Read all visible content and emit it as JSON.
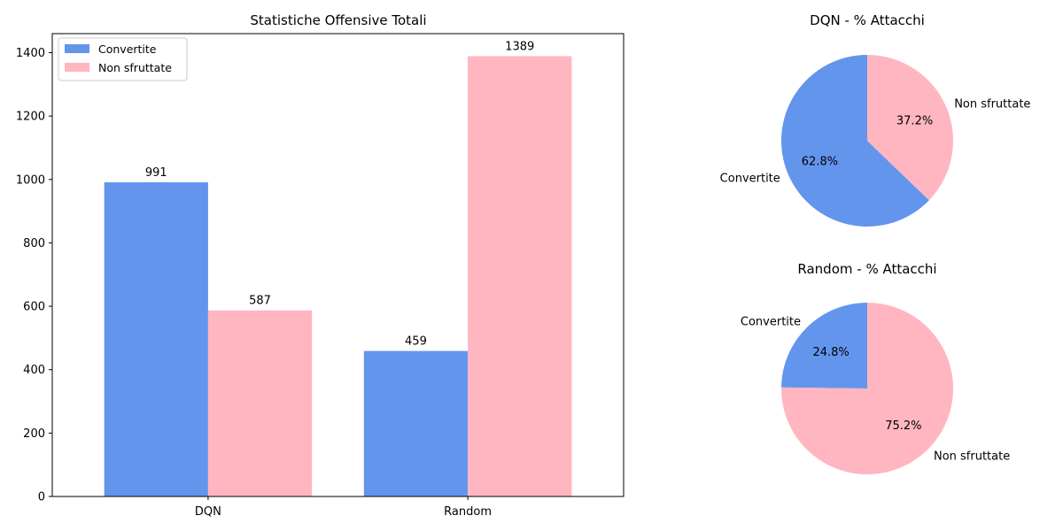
{
  "colors": {
    "convertite": "#6495ED",
    "non_sfruttate": "#FFB6C1",
    "axis": "#000000",
    "legend_border": "#cccccc"
  },
  "chart_data": [
    {
      "type": "bar",
      "title": "Statistiche Offensive Totali",
      "categories": [
        "DQN",
        "Random"
      ],
      "series": [
        {
          "name": "Convertite",
          "values": [
            991,
            459
          ]
        },
        {
          "name": "Non sfruttate",
          "values": [
            587,
            1389
          ]
        }
      ],
      "ylim": [
        0,
        1460
      ],
      "yticks": [
        0,
        200,
        400,
        600,
        800,
        1000,
        1200,
        1400
      ],
      "legend": "top-left",
      "grid": false
    },
    {
      "type": "pie",
      "title": "DQN - % Attacchi",
      "labels": [
        "Convertite",
        "Non sfruttate"
      ],
      "values": [
        62.8,
        37.2
      ],
      "pct_labels": [
        "62.8%",
        "37.2%"
      ]
    },
    {
      "type": "pie",
      "title": "Random - % Attacchi",
      "labels": [
        "Convertite",
        "Non sfruttate"
      ],
      "values": [
        24.8,
        75.2
      ],
      "pct_labels": [
        "24.8%",
        "75.2%"
      ]
    }
  ]
}
